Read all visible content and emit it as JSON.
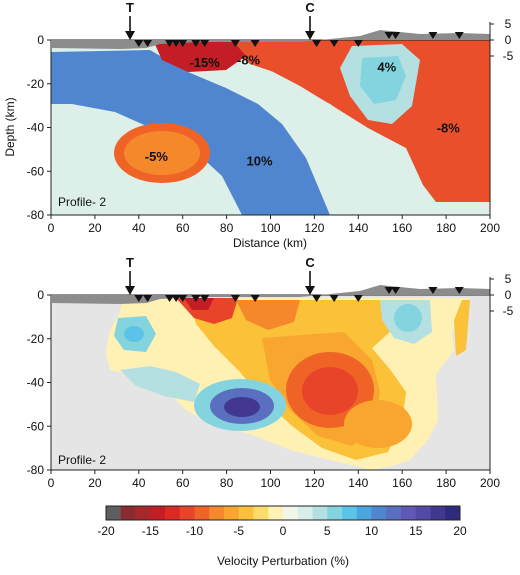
{
  "chart_data": [
    {
      "type": "heatmap",
      "panel_label": "Profile- 2",
      "xlabel": "Distance (km)",
      "ylabel": "Depth (km)",
      "xlim": [
        0,
        200
      ],
      "ylim": [
        -80,
        0
      ],
      "right_ylim": [
        -5,
        5
      ],
      "xticks": [
        "0",
        "20",
        "40",
        "60",
        "80",
        "100",
        "120",
        "140",
        "160",
        "180",
        "200"
      ],
      "yticks": [
        "0",
        "-20",
        "-40",
        "-60",
        "-80"
      ],
      "right_yticks": [
        "5",
        "0",
        "-5"
      ],
      "surface_markers": [
        {
          "label": "T",
          "x": 36
        },
        {
          "label": "C",
          "x": 118
        }
      ],
      "stations_x": [
        40,
        44,
        54,
        57,
        60,
        66,
        70,
        84,
        93,
        121,
        129,
        140,
        154,
        157,
        174,
        186
      ],
      "anomaly_labels": [
        {
          "text": "-15%",
          "x": 70,
          "depth": -10
        },
        {
          "text": "-8%",
          "x": 90,
          "depth": -9
        },
        {
          "text": "4%",
          "x": 153,
          "depth": -12
        },
        {
          "text": "-8%",
          "x": 181,
          "depth": -40
        },
        {
          "text": "-5%",
          "x": 48,
          "depth": -53
        },
        {
          "text": "10%",
          "x": 95,
          "depth": -55
        }
      ],
      "regions": [
        {
          "name": "blue slab",
          "value": 10
        },
        {
          "name": "south orange body",
          "value": -5
        },
        {
          "name": "north orange region",
          "value": -8
        },
        {
          "name": "shallow red",
          "value": -15
        },
        {
          "name": "cyan lens",
          "value": 4
        }
      ]
    },
    {
      "type": "heatmap",
      "panel_label": "Profile- 2",
      "xlim": [
        0,
        200
      ],
      "ylim": [
        -80,
        0
      ],
      "right_ylim": [
        -5,
        5
      ],
      "xticks": [
        "0",
        "20",
        "40",
        "60",
        "80",
        "100",
        "120",
        "140",
        "160",
        "180",
        "200"
      ],
      "yticks": [
        "0",
        "-20",
        "-40",
        "-60",
        "-80"
      ],
      "right_yticks": [
        "5",
        "0",
        "-5"
      ],
      "surface_markers": [
        {
          "label": "T",
          "x": 36
        },
        {
          "label": "C",
          "x": 118
        }
      ],
      "stations_x": [
        40,
        44,
        54,
        57,
        60,
        66,
        70,
        84,
        93,
        121,
        129,
        140,
        154,
        157,
        174,
        186
      ],
      "anomalies": [
        {
          "x": 62,
          "depth": -6,
          "value": -17
        },
        {
          "x": 82,
          "depth": -10,
          "value": -8
        },
        {
          "x": 120,
          "depth": -43,
          "value": -10
        },
        {
          "x": 144,
          "depth": -58,
          "value": -6
        },
        {
          "x": 88,
          "depth": -52,
          "value": 15
        },
        {
          "x": 35,
          "depth": -20,
          "value": 8
        },
        {
          "x": 152,
          "depth": -15,
          "value": 5
        }
      ]
    }
  ],
  "colorbar": {
    "title": "Velocity Perturbation (%)",
    "tick_labels": [
      "-20",
      "-15",
      "-10",
      "-5",
      "0",
      "5",
      "10",
      "15",
      "20"
    ],
    "colors": [
      "#5e5e5e",
      "#8a2b30",
      "#a8282a",
      "#c31e25",
      "#da2a24",
      "#e8442a",
      "#ef6426",
      "#f6882c",
      "#f8a62f",
      "#fbc138",
      "#fbdc6a",
      "#fff1b3",
      "#f0f6e8",
      "#d7eeea",
      "#b4e0e1",
      "#84d4e0",
      "#5cc3e8",
      "#4aa6df",
      "#4f86cf",
      "#5b6fc0",
      "#5f58b4",
      "#524aa4",
      "#43388f",
      "#2f2b7c"
    ]
  }
}
